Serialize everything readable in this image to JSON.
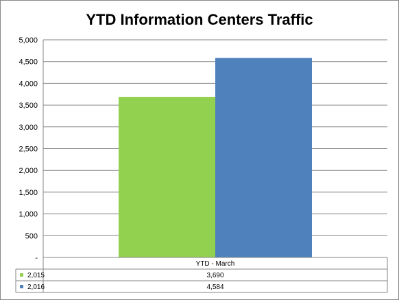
{
  "chart_data": {
    "type": "bar",
    "title": "YTD Information Centers Traffic",
    "xlabel": "",
    "ylabel": "",
    "categories": [
      "YTD - March"
    ],
    "series": [
      {
        "name": "2,015",
        "values": [
          3690
        ],
        "value_labels": [
          "3,690"
        ],
        "color": "#92D050"
      },
      {
        "name": "2,016",
        "values": [
          4584
        ],
        "value_labels": [
          "4,584"
        ],
        "color": "#4F81BD"
      }
    ],
    "ylim": [
      0,
      5000
    ],
    "yticks": [
      0,
      500,
      1000,
      1500,
      2000,
      2500,
      3000,
      3500,
      4000,
      4500,
      5000
    ],
    "ytick_labels": [
      "-",
      "500",
      "1,000",
      "1,500",
      "2,000",
      "2,500",
      "3,000",
      "3,500",
      "4,000",
      "4,500",
      "5,000"
    ],
    "grid": true,
    "legend": "data-table-below"
  }
}
